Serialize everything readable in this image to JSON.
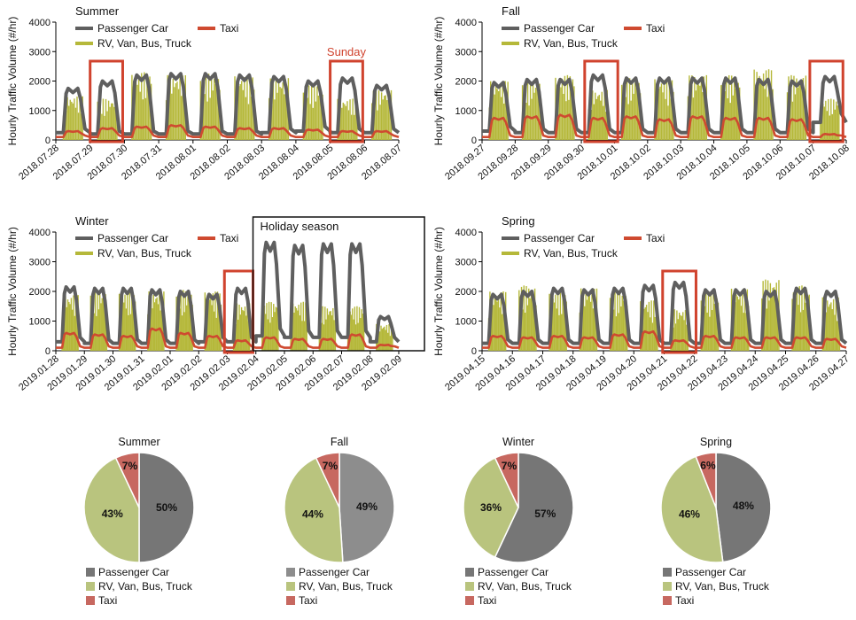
{
  "legend": {
    "passenger": "Passenger Car",
    "taxi": "Taxi",
    "rv": "RV, Van, Bus, Truck"
  },
  "y_axis_label": "Hourly Traffic Volume (#/hr)",
  "colors": {
    "passenger": "#5f5f5f",
    "taxi": "#cf4a30",
    "rv": "#b5b83a",
    "highlight": "#d0432e",
    "box": "#111111",
    "pie_passenger": "#767676",
    "pie_passenger_light": "#8d8d8d",
    "pie_rv": "#b9c47e",
    "pie_taxi": "#c76860"
  },
  "chart_data": [
    {
      "type": "line",
      "title": "Summer",
      "ylabel": "Hourly Traffic Volume (#/hr)",
      "ylim": [
        0,
        4000
      ],
      "yticks": [
        0,
        1000,
        2000,
        3000,
        4000
      ],
      "categories": [
        "2018.07.28",
        "2018.07.29",
        "2018.07.30",
        "2018.07.31",
        "2018.08.01",
        "2018.08.02",
        "2018.08.03",
        "2018.08.04",
        "2018.08.05",
        "2018.08.06",
        "2018.08.07"
      ],
      "series": [
        {
          "name": "Passenger Car",
          "style": "line",
          "daily_peak": [
            1750,
            2000,
            2200,
            2250,
            2250,
            2200,
            2150,
            2000,
            2100,
            1850
          ],
          "daily_low": [
            250,
            200,
            200,
            200,
            200,
            200,
            250,
            300,
            250,
            250
          ]
        },
        {
          "name": "Taxi",
          "style": "line",
          "daily_peak": [
            300,
            400,
            450,
            500,
            450,
            400,
            400,
            350,
            300,
            300
          ],
          "daily_low": [
            100,
            100,
            100,
            100,
            100,
            100,
            100,
            100,
            100,
            100
          ]
        },
        {
          "name": "RV, Van, Bus, Truck",
          "style": "bar",
          "daily_peak": [
            1500,
            1400,
            2300,
            2200,
            2250,
            2200,
            2100,
            1900,
            1400,
            1700
          ]
        }
      ],
      "highlights": [
        {
          "type": "red-box",
          "from_day": 1,
          "to_day": 1.95,
          "label": ""
        },
        {
          "type": "red-box",
          "from_day": 8,
          "to_day": 8.95,
          "label": "Sunday"
        }
      ]
    },
    {
      "type": "line",
      "title": "Fall",
      "ylabel": "Hourly Traffic Volume (#/hr)",
      "ylim": [
        0,
        4000
      ],
      "yticks": [
        0,
        1000,
        2000,
        3000,
        4000
      ],
      "categories": [
        "2018.09.27",
        "2018.09.28",
        "2018.09.29",
        "2018.09.30",
        "2018.10.01",
        "2018.10.02",
        "2018.10.03",
        "2018.10.04",
        "2018.10.05",
        "2018.10.06",
        "2018.10.07",
        "2018.10.08"
      ],
      "series": [
        {
          "name": "Passenger Car",
          "style": "line",
          "daily_peak": [
            1950,
            2050,
            2050,
            2200,
            2100,
            2100,
            2100,
            2100,
            2050,
            2000,
            2150
          ],
          "daily_low": [
            300,
            250,
            250,
            250,
            250,
            250,
            250,
            250,
            250,
            250,
            600
          ]
        },
        {
          "name": "Taxi",
          "style": "line",
          "daily_peak": [
            750,
            800,
            850,
            750,
            800,
            700,
            800,
            750,
            750,
            700,
            200
          ],
          "daily_low": [
            100,
            100,
            100,
            100,
            100,
            100,
            100,
            100,
            100,
            100,
            100
          ]
        },
        {
          "name": "RV, Van, Bus, Truck",
          "style": "bar",
          "daily_peak": [
            2000,
            2000,
            2200,
            1700,
            2100,
            2100,
            2200,
            2200,
            2400,
            2200,
            1400
          ]
        }
      ],
      "highlights": [
        {
          "type": "red-box",
          "from_day": 3.1,
          "to_day": 4.1,
          "label": ""
        },
        {
          "type": "red-box",
          "from_day": 9.9,
          "to_day": 10.9,
          "label": ""
        }
      ]
    },
    {
      "type": "line",
      "title": "Winter",
      "ylabel": "Hourly Traffic Volume (#/hr)",
      "ylim": [
        0,
        4000
      ],
      "yticks": [
        0,
        1000,
        2000,
        3000,
        4000
      ],
      "categories": [
        "2019.01.28",
        "2019.01.29",
        "2019.01.30",
        "2019.01.31",
        "2019.02.01",
        "2019.02.02",
        "2019.02.03",
        "2019.02.04",
        "2019.02.05",
        "2019.02.06",
        "2019.02.07",
        "2019.02.08",
        "2019.02.09"
      ],
      "series": [
        {
          "name": "Passenger Car",
          "style": "line",
          "daily_peak": [
            2150,
            2100,
            2100,
            2050,
            2000,
            1900,
            2100,
            3650,
            3550,
            3600,
            3600,
            1150
          ],
          "daily_low": [
            300,
            250,
            250,
            250,
            250,
            300,
            300,
            500,
            450,
            450,
            450,
            300
          ]
        },
        {
          "name": "Taxi",
          "style": "line",
          "daily_peak": [
            600,
            550,
            500,
            750,
            600,
            500,
            350,
            450,
            400,
            400,
            550,
            200
          ],
          "daily_low": [
            100,
            100,
            100,
            100,
            100,
            100,
            100,
            100,
            100,
            100,
            100,
            100
          ]
        },
        {
          "name": "RV, Van, Bus, Truck",
          "style": "bar",
          "daily_peak": [
            1900,
            2000,
            2000,
            2000,
            2050,
            2000,
            1600,
            1650,
            1650,
            1500,
            1500,
            900
          ]
        }
      ],
      "highlights": [
        {
          "type": "red-box",
          "from_day": 5.9,
          "to_day": 6.9,
          "label": ""
        },
        {
          "type": "black-box",
          "from_day": 6.9,
          "to_day": 12.9,
          "label": "Holiday season"
        }
      ]
    },
    {
      "type": "line",
      "title": "Spring",
      "ylabel": "Hourly Traffic Volume (#/hr)",
      "ylim": [
        0,
        4000
      ],
      "yticks": [
        0,
        1000,
        2000,
        3000,
        4000
      ],
      "categories": [
        "2019.04.15",
        "2019.04.16",
        "2019.04.17",
        "2019.04.18",
        "2019.04.19",
        "2019.04.20",
        "2019.04.21",
        "2019.04.22",
        "2019.04.23",
        "2019.04.24",
        "2019.04.25",
        "2019.04.26",
        "2019.04.27"
      ],
      "series": [
        {
          "name": "Passenger Car",
          "style": "line",
          "daily_peak": [
            1900,
            2000,
            2100,
            2050,
            2100,
            2200,
            2300,
            2050,
            2050,
            2000,
            2100,
            2000
          ],
          "daily_low": [
            250,
            250,
            250,
            250,
            250,
            250,
            250,
            250,
            250,
            250,
            250,
            250
          ]
        },
        {
          "name": "Taxi",
          "style": "line",
          "daily_peak": [
            500,
            450,
            500,
            450,
            550,
            650,
            350,
            500,
            450,
            450,
            450,
            400
          ],
          "daily_low": [
            100,
            100,
            100,
            100,
            100,
            100,
            100,
            100,
            100,
            100,
            100,
            100
          ]
        },
        {
          "name": "RV, Van, Bus, Truck",
          "style": "bar",
          "daily_peak": [
            2000,
            2200,
            2000,
            2100,
            2000,
            1700,
            1400,
            2000,
            2100,
            2400,
            2200,
            1800
          ]
        }
      ],
      "highlights": [
        {
          "type": "red-box",
          "from_day": 5.95,
          "to_day": 7.05,
          "label": ""
        }
      ]
    },
    {
      "type": "pie",
      "title": "Summer",
      "labels": [
        "Passenger Car",
        "RV, Van, Bus, Truck",
        "Taxi"
      ],
      "values": [
        50,
        43,
        7
      ],
      "value_labels": [
        "50%",
        "43%",
        "7%"
      ]
    },
    {
      "type": "pie",
      "title": "Fall",
      "labels": [
        "Passenger Car",
        "RV, Van, Bus, Truck",
        "Taxi"
      ],
      "values": [
        49,
        44,
        7
      ],
      "value_labels": [
        "49%",
        "44%",
        "7%"
      ]
    },
    {
      "type": "pie",
      "title": "Winter",
      "labels": [
        "Passenger Car",
        "RV, Van, Bus, Truck",
        "Taxi"
      ],
      "values": [
        57,
        36,
        7
      ],
      "value_labels": [
        "57%",
        "36%",
        "7%"
      ]
    },
    {
      "type": "pie",
      "title": "Spring",
      "labels": [
        "Passenger Car",
        "RV, Van, Bus, Truck",
        "Taxi"
      ],
      "values": [
        48,
        46,
        6
      ],
      "value_labels": [
        "48%",
        "46%",
        "6%"
      ]
    }
  ]
}
